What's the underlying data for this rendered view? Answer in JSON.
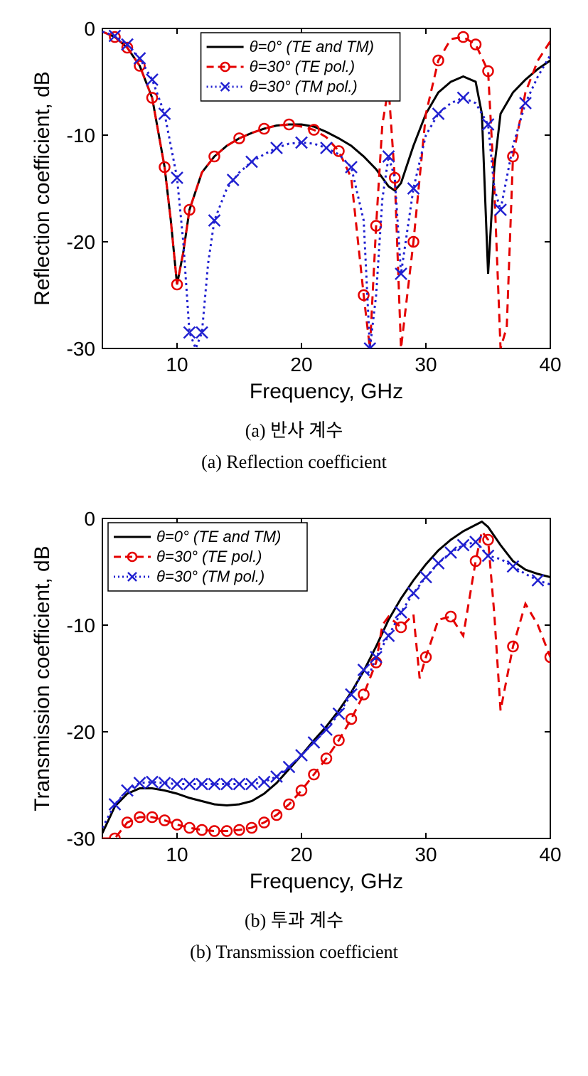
{
  "chartA": {
    "type": "line",
    "xlabel": "Frequency, GHz",
    "ylabel": "Reflection coefficient, dB",
    "xlim": [
      4,
      40
    ],
    "ylim": [
      -30,
      0
    ],
    "xticks": [
      10,
      20,
      30,
      40
    ],
    "yticks": [
      -30,
      -20,
      -10,
      0
    ],
    "background_color": "#ffffff",
    "axis_color": "#000000",
    "label_fontsize": 30,
    "tick_fontsize": 28,
    "tick_length": 8,
    "legend": {
      "position": "top",
      "border_color": "#000000",
      "background": "#ffffff",
      "fontsize": 22,
      "items": [
        {
          "label": "θ=0° (TE and TM)",
          "color": "#000000",
          "style": "solid",
          "marker": "none"
        },
        {
          "label": "θ=30° (TE pol.)",
          "color": "#e40000",
          "style": "dash",
          "marker": "circle"
        },
        {
          "label": "θ=30° (TM pol.)",
          "color": "#2020d0",
          "style": "dot",
          "marker": "x"
        }
      ]
    },
    "series": [
      {
        "name": "theta0",
        "color": "#000000",
        "line_width": 3,
        "style": "solid",
        "marker": "none",
        "x": [
          4,
          5,
          6,
          7,
          8,
          9,
          9.5,
          10,
          10.5,
          11,
          12,
          13,
          14,
          15,
          16,
          17,
          18,
          19,
          20,
          21,
          22,
          23,
          24,
          25,
          26,
          27,
          27.5,
          28,
          29,
          30,
          31,
          32,
          33,
          34,
          34.5,
          35,
          35.5,
          36,
          37,
          38,
          39,
          40
        ],
        "y": [
          -0.3,
          -0.8,
          -1.8,
          -3.5,
          -6.5,
          -13,
          -18,
          -24,
          -21,
          -17,
          -13.5,
          -12,
          -11,
          -10.3,
          -9.8,
          -9.4,
          -9.1,
          -9,
          -9,
          -9.2,
          -9.7,
          -10.3,
          -11,
          -12,
          -13.2,
          -14.8,
          -15.2,
          -14.5,
          -11,
          -8,
          -6,
          -5,
          -4.5,
          -5,
          -8,
          -23,
          -13,
          -8,
          -6,
          -4.8,
          -3.8,
          -3
        ]
      },
      {
        "name": "theta30_TE",
        "color": "#e40000",
        "line_width": 3,
        "style": "dash",
        "marker": "circle",
        "marker_size": 7,
        "x": [
          4,
          5,
          6,
          7,
          8,
          9,
          9.5,
          10,
          10.5,
          11,
          12,
          13,
          14,
          15,
          16,
          17,
          18,
          19,
          20,
          21,
          22,
          23,
          24,
          25,
          25.5,
          26,
          26.5,
          27,
          27.5,
          28,
          29,
          30,
          31,
          32,
          33,
          34,
          35,
          35.5,
          36,
          36.5,
          37,
          38,
          39,
          40
        ],
        "y": [
          -0.3,
          -0.8,
          -1.8,
          -3.5,
          -6.5,
          -13,
          -18,
          -24,
          -21,
          -17,
          -13.5,
          -12,
          -11,
          -10.3,
          -9.8,
          -9.4,
          -9.1,
          -9,
          -9.2,
          -9.5,
          -10.2,
          -11.5,
          -14,
          -25,
          -30,
          -18.5,
          -9,
          -5.5,
          -14,
          -30,
          -20,
          -8,
          -3,
          -1,
          -0.8,
          -1.5,
          -4,
          -15,
          -30,
          -28,
          -12,
          -6,
          -3,
          -1.2
        ],
        "marker_x": [
          5,
          6,
          7,
          8,
          9,
          10,
          11,
          13,
          15,
          17,
          19,
          21,
          23,
          25,
          26,
          27.5,
          29,
          31,
          33,
          34,
          35,
          37
        ],
        "marker_y": [
          -0.8,
          -1.8,
          -3.5,
          -6.5,
          -13,
          -24,
          -17,
          -12,
          -10.3,
          -9.4,
          -9,
          -9.5,
          -11.5,
          -25,
          -18.5,
          -14,
          -20,
          -3,
          -0.8,
          -1.5,
          -4,
          -12
        ]
      },
      {
        "name": "theta30_TM",
        "color": "#2020d0",
        "line_width": 3,
        "style": "dot",
        "marker": "x",
        "marker_size": 8,
        "x": [
          4,
          5,
          6,
          7,
          8,
          9,
          10,
          10.5,
          11,
          11.5,
          12,
          12.5,
          13,
          14,
          15,
          16,
          17,
          18,
          19,
          20,
          21,
          22,
          23,
          24,
          25,
          25.5,
          26,
          26.5,
          27,
          27.5,
          28,
          29,
          30,
          31,
          32,
          33,
          34,
          35,
          35.5,
          36,
          37,
          38,
          39,
          40
        ],
        "y": [
          -0.3,
          -0.7,
          -1.5,
          -2.8,
          -4.8,
          -8,
          -14,
          -20,
          -28.5,
          -30,
          -28.5,
          -22,
          -18,
          -15,
          -13.5,
          -12.5,
          -11.8,
          -11.2,
          -10.8,
          -10.7,
          -10.8,
          -11.2,
          -11.8,
          -13,
          -18,
          -30,
          -25,
          -16,
          -12,
          -14,
          -23,
          -15,
          -10,
          -8,
          -7,
          -6.5,
          -7,
          -9,
          -15,
          -17,
          -11,
          -7,
          -4.5,
          -2.5
        ],
        "marker_x": [
          5,
          6,
          7,
          8,
          9,
          10,
          11,
          12,
          13,
          14.5,
          16,
          18,
          20,
          22,
          24,
          25.5,
          27,
          28,
          29,
          31,
          33,
          35,
          36,
          38
        ],
        "marker_y": [
          -0.7,
          -1.5,
          -2.8,
          -4.8,
          -8,
          -14,
          -28.5,
          -28.5,
          -18,
          -14.2,
          -12.5,
          -11.2,
          -10.7,
          -11.2,
          -13,
          -30,
          -12,
          -23,
          -15,
          -8,
          -6.5,
          -9,
          -17,
          -7
        ]
      }
    ],
    "caption_kr": "(a) 반사 계수",
    "caption_en": "(a) Reflection coefficient"
  },
  "chartB": {
    "type": "line",
    "xlabel": "Frequency, GHz",
    "ylabel": "Transmission coefficient, dB",
    "xlim": [
      4,
      40
    ],
    "ylim": [
      -30,
      0
    ],
    "xticks": [
      10,
      20,
      30,
      40
    ],
    "yticks": [
      -30,
      -20,
      -10,
      0
    ],
    "background_color": "#ffffff",
    "axis_color": "#000000",
    "label_fontsize": 30,
    "tick_fontsize": 28,
    "tick_length": 8,
    "legend": {
      "position": "top-left",
      "border_color": "#000000",
      "background": "#ffffff",
      "fontsize": 22,
      "items": [
        {
          "label": "θ=0° (TE and TM)",
          "color": "#000000",
          "style": "solid",
          "marker": "none"
        },
        {
          "label": "θ=30° (TE pol.)",
          "color": "#e40000",
          "style": "dash",
          "marker": "circle"
        },
        {
          "label": "θ=30° (TM pol.)",
          "color": "#2020d0",
          "style": "dot",
          "marker": "x"
        }
      ]
    },
    "series": [
      {
        "name": "theta0",
        "color": "#000000",
        "line_width": 3,
        "style": "solid",
        "marker": "none",
        "x": [
          4,
          5,
          6,
          7,
          8,
          9,
          10,
          11,
          12,
          13,
          14,
          15,
          16,
          17,
          18,
          19,
          20,
          21,
          22,
          23,
          24,
          25,
          26,
          27,
          28,
          29,
          30,
          31,
          32,
          33,
          34,
          34.5,
          35,
          36,
          37,
          38,
          39,
          40
        ],
        "y": [
          -29.5,
          -27,
          -25.8,
          -25.3,
          -25.3,
          -25.5,
          -25.8,
          -26.2,
          -26.5,
          -26.8,
          -26.9,
          -26.8,
          -26.5,
          -25.8,
          -24.8,
          -23.5,
          -22.2,
          -20.8,
          -19.5,
          -18,
          -16.3,
          -14.3,
          -12,
          -9.5,
          -7.5,
          -5.8,
          -4.3,
          -3,
          -2,
          -1.2,
          -0.6,
          -0.3,
          -0.8,
          -2.5,
          -4,
          -4.8,
          -5.2,
          -5.5
        ]
      },
      {
        "name": "theta30_TE",
        "color": "#e40000",
        "line_width": 3,
        "style": "dash",
        "marker": "circle",
        "marker_size": 7,
        "x": [
          4,
          5,
          6,
          7,
          8,
          9,
          10,
          11,
          12,
          13,
          14,
          15,
          16,
          17,
          18,
          19,
          20,
          21,
          22,
          23,
          24,
          25,
          26,
          26.5,
          27,
          28,
          29,
          29.5,
          30,
          31,
          32,
          33,
          34,
          34.5,
          35,
          35.5,
          36,
          37,
          38,
          39,
          40
        ],
        "y": [
          -30,
          -30,
          -28.5,
          -28,
          -28,
          -28.3,
          -28.7,
          -29,
          -29.2,
          -29.3,
          -29.3,
          -29.2,
          -29,
          -28.5,
          -27.8,
          -26.8,
          -25.5,
          -24,
          -22.5,
          -20.8,
          -18.8,
          -16.5,
          -13.5,
          -10,
          -9.2,
          -10.2,
          -9,
          -15,
          -13,
          -9.5,
          -9.2,
          -11,
          -4,
          -1.2,
          -2,
          -9,
          -18,
          -12,
          -8,
          -10,
          -13
        ],
        "marker_x": [
          5,
          6,
          7,
          8,
          9,
          10,
          11,
          12,
          13,
          14,
          15,
          16,
          17,
          18,
          19,
          20,
          21,
          22,
          23,
          24,
          25,
          26,
          28,
          30,
          32,
          34,
          35,
          37,
          40
        ],
        "marker_y": [
          -30,
          -28.5,
          -28,
          -28,
          -28.3,
          -28.7,
          -29,
          -29.2,
          -29.3,
          -29.3,
          -29.2,
          -29,
          -28.5,
          -27.8,
          -26.8,
          -25.5,
          -24,
          -22.5,
          -20.8,
          -18.8,
          -16.5,
          -13.5,
          -10.2,
          -13,
          -9.2,
          -4,
          -2,
          -12,
          -13
        ]
      },
      {
        "name": "theta30_TM",
        "color": "#2020d0",
        "line_width": 3,
        "style": "dot",
        "marker": "x",
        "marker_size": 8,
        "x": [
          4,
          5,
          6,
          7,
          8,
          9,
          10,
          11,
          12,
          13,
          14,
          15,
          16,
          17,
          18,
          19,
          20,
          21,
          22,
          23,
          24,
          25,
          25.5,
          26,
          27,
          28,
          29,
          30,
          31,
          32,
          33,
          34,
          35,
          36,
          37,
          38,
          39,
          40
        ],
        "y": [
          -29,
          -26.8,
          -25.5,
          -24.8,
          -24.7,
          -24.8,
          -24.9,
          -24.9,
          -24.9,
          -24.9,
          -24.9,
          -24.9,
          -24.9,
          -24.7,
          -24.2,
          -23.3,
          -22.2,
          -21,
          -19.8,
          -18.3,
          -16.5,
          -14.2,
          -14.5,
          -13,
          -11,
          -8.8,
          -7,
          -5.5,
          -4.2,
          -3.2,
          -2.5,
          -2.2,
          -3.5,
          -3.8,
          -4.5,
          -5.2,
          -5.8,
          -6.2
        ],
        "marker_x": [
          5,
          6,
          7,
          8,
          9,
          10,
          11,
          12,
          13,
          14,
          15,
          16,
          17,
          18,
          19,
          20,
          21,
          22,
          23,
          24,
          25,
          26,
          27,
          28,
          29,
          30,
          31,
          32,
          33,
          34,
          35,
          37,
          39
        ],
        "marker_y": [
          -26.8,
          -25.5,
          -24.8,
          -24.7,
          -24.8,
          -24.9,
          -24.9,
          -24.9,
          -24.9,
          -24.9,
          -24.9,
          -24.9,
          -24.7,
          -24.2,
          -23.3,
          -22.2,
          -21,
          -19.8,
          -18.3,
          -16.5,
          -14.2,
          -13,
          -11,
          -8.8,
          -7,
          -5.5,
          -4.2,
          -3.2,
          -2.5,
          -2.2,
          -3.5,
          -4.5,
          -5.8
        ]
      }
    ],
    "caption_kr": "(b) 투과 계수",
    "caption_en": "(b) Transmission coefficient"
  }
}
